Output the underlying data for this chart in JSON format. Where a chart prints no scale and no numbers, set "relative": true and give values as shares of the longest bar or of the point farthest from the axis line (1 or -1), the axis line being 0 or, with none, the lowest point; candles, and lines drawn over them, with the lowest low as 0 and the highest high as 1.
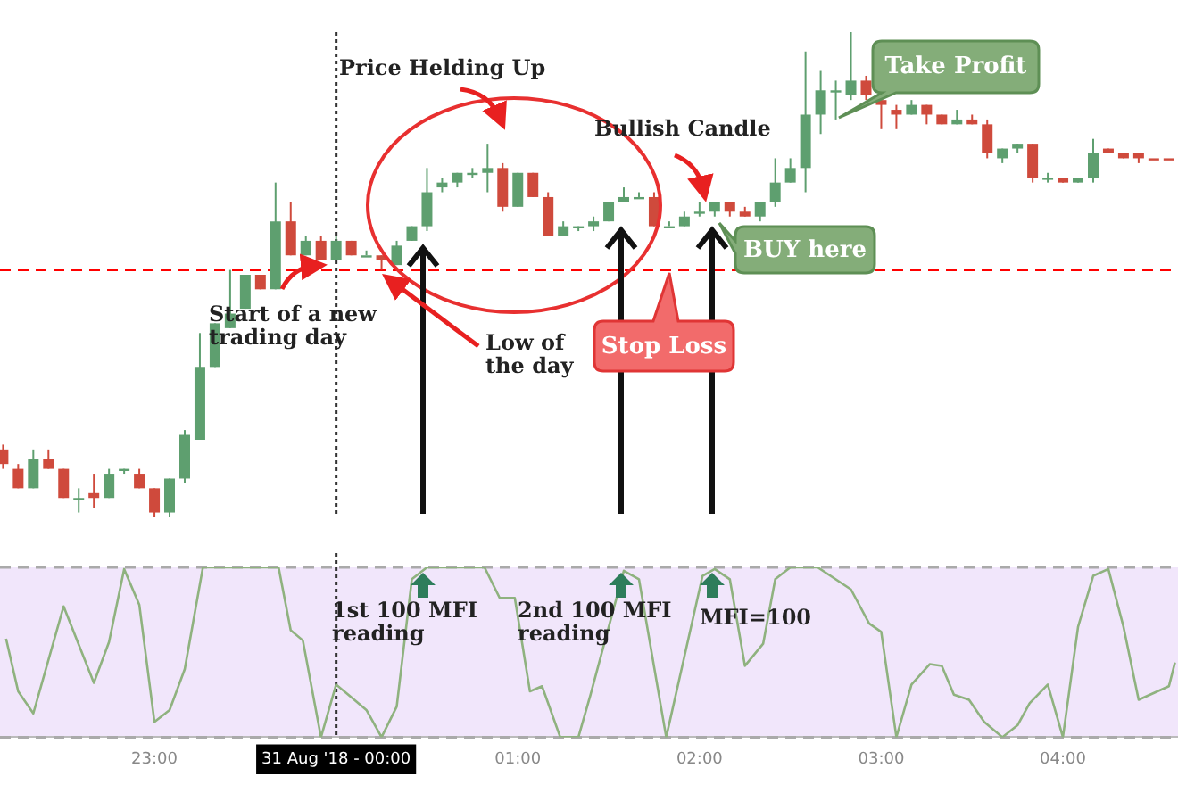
{
  "chart_data": [
    {
      "type": "candlestick",
      "relative": true,
      "x": [
        "2018-08-30T22:10",
        "2018-08-30T22:15",
        "2018-08-30T22:20",
        "2018-08-30T22:25",
        "2018-08-30T22:30",
        "2018-08-30T22:35",
        "2018-08-30T22:40",
        "2018-08-30T22:45",
        "2018-08-30T22:50",
        "2018-08-30T22:55",
        "2018-08-30T23:00",
        "2018-08-30T23:05",
        "2018-08-30T23:10",
        "2018-08-30T23:15",
        "2018-08-30T23:20",
        "2018-08-30T23:25",
        "2018-08-30T23:30",
        "2018-08-30T23:35",
        "2018-08-30T23:40",
        "2018-08-30T23:45",
        "2018-08-30T23:50",
        "2018-08-30T23:55",
        "2018-08-31T00:00",
        "2018-08-31T00:05",
        "2018-08-31T00:10",
        "2018-08-31T00:15",
        "2018-08-31T00:20",
        "2018-08-31T00:25",
        "2018-08-31T00:30",
        "2018-08-31T00:35",
        "2018-08-31T00:40",
        "2018-08-31T00:45",
        "2018-08-31T00:50",
        "2018-08-31T00:55",
        "2018-08-31T01:00",
        "2018-08-31T01:05",
        "2018-08-31T01:10",
        "2018-08-31T01:15",
        "2018-08-31T01:20",
        "2018-08-31T01:25",
        "2018-08-31T01:30",
        "2018-08-31T01:35",
        "2018-08-31T01:40",
        "2018-08-31T01:45",
        "2018-08-31T01:50",
        "2018-08-31T01:55",
        "2018-08-31T02:00",
        "2018-08-31T02:05",
        "2018-08-31T02:10",
        "2018-08-31T02:15",
        "2018-08-31T02:20",
        "2018-08-31T02:25",
        "2018-08-31T02:30",
        "2018-08-31T02:35",
        "2018-08-31T02:40",
        "2018-08-31T02:45",
        "2018-08-31T02:50",
        "2018-08-31T02:55",
        "2018-08-31T03:00",
        "2018-08-31T03:05",
        "2018-08-31T03:10",
        "2018-08-31T03:15",
        "2018-08-31T03:20",
        "2018-08-31T03:25",
        "2018-08-31T03:30",
        "2018-08-31T03:35",
        "2018-08-31T03:40",
        "2018-08-31T03:45",
        "2018-08-31T03:50",
        "2018-08-31T03:55",
        "2018-08-31T04:00",
        "2018-08-31T04:05",
        "2018-08-31T04:10",
        "2018-08-31T04:15",
        "2018-08-31T04:20",
        "2018-08-31T04:25",
        "2018-08-31T04:30",
        "2018-08-31T04:35"
      ],
      "ohlc": [
        [
          0.14,
          0.15,
          0.1,
          0.11
        ],
        [
          0.1,
          0.11,
          0.06,
          0.06
        ],
        [
          0.06,
          0.14,
          0.06,
          0.12
        ],
        [
          0.12,
          0.14,
          0.1,
          0.1
        ],
        [
          0.1,
          0.1,
          0.04,
          0.04
        ],
        [
          0.04,
          0.06,
          0.01,
          0.04
        ],
        [
          0.05,
          0.09,
          0.02,
          0.04
        ],
        [
          0.04,
          0.1,
          0.04,
          0.09
        ],
        [
          0.1,
          0.1,
          0.09,
          0.1
        ],
        [
          0.09,
          0.1,
          0.06,
          0.06
        ],
        [
          0.06,
          0.06,
          0,
          0.01
        ],
        [
          0.01,
          0.08,
          0,
          0.08
        ],
        [
          0.08,
          0.18,
          0.07,
          0.17
        ],
        [
          0.16,
          0.38,
          0.16,
          0.31
        ],
        [
          0.31,
          0.4,
          0.31,
          0.4
        ],
        [
          0.39,
          0.51,
          0.39,
          0.42
        ],
        [
          0.43,
          0.5,
          0.43,
          0.5
        ],
        [
          0.5,
          0.5,
          0.47,
          0.47
        ],
        [
          0.47,
          0.69,
          0.47,
          0.61
        ],
        [
          0.61,
          0.65,
          0.54,
          0.54
        ],
        [
          0.54,
          0.58,
          0.54,
          0.57
        ],
        [
          0.57,
          0.58,
          0.53,
          0.53
        ],
        [
          0.53,
          0.58,
          0.53,
          0.57
        ],
        [
          0.57,
          0.57,
          0.54,
          0.54
        ],
        [
          0.54,
          0.55,
          0.54,
          0.54
        ],
        [
          0.54,
          0.54,
          0.51,
          0.53
        ],
        [
          0.52,
          0.57,
          0.52,
          0.56
        ],
        [
          0.57,
          0.6,
          0.57,
          0.6
        ],
        [
          0.6,
          0.72,
          0.59,
          0.67
        ],
        [
          0.68,
          0.7,
          0.67,
          0.69
        ],
        [
          0.69,
          0.71,
          0.68,
          0.71
        ],
        [
          0.71,
          0.72,
          0.7,
          0.71
        ],
        [
          0.71,
          0.77,
          0.67,
          0.72
        ],
        [
          0.72,
          0.73,
          0.63,
          0.64
        ],
        [
          0.64,
          0.71,
          0.64,
          0.71
        ],
        [
          0.71,
          0.71,
          0.66,
          0.66
        ],
        [
          0.66,
          0.67,
          0.58,
          0.58
        ],
        [
          0.58,
          0.61,
          0.58,
          0.6
        ],
        [
          0.6,
          0.6,
          0.59,
          0.6
        ],
        [
          0.6,
          0.62,
          0.59,
          0.61
        ],
        [
          0.61,
          0.65,
          0.61,
          0.65
        ],
        [
          0.65,
          0.68,
          0.65,
          0.66
        ],
        [
          0.66,
          0.67,
          0.66,
          0.66
        ],
        [
          0.66,
          0.67,
          0.6,
          0.6
        ],
        [
          0.6,
          0.61,
          0.6,
          0.6
        ],
        [
          0.6,
          0.63,
          0.6,
          0.62
        ],
        [
          0.63,
          0.65,
          0.62,
          0.63
        ],
        [
          0.63,
          0.65,
          0.62,
          0.65
        ],
        [
          0.65,
          0.65,
          0.62,
          0.63
        ],
        [
          0.63,
          0.64,
          0.62,
          0.62
        ],
        [
          0.62,
          0.65,
          0.61,
          0.65
        ],
        [
          0.65,
          0.74,
          0.64,
          0.69
        ],
        [
          0.69,
          0.74,
          0.69,
          0.72
        ],
        [
          0.72,
          0.96,
          0.67,
          0.83
        ],
        [
          0.83,
          0.92,
          0.79,
          0.88
        ],
        [
          0.88,
          0.9,
          0.82,
          0.88
        ],
        [
          0.87,
          1,
          0.86,
          0.9
        ],
        [
          0.9,
          0.91,
          0.86,
          0.87
        ],
        [
          0.86,
          0.86,
          0.8,
          0.85
        ],
        [
          0.84,
          0.85,
          0.8,
          0.83
        ],
        [
          0.83,
          0.86,
          0.83,
          0.85
        ],
        [
          0.85,
          0.85,
          0.81,
          0.83
        ],
        [
          0.83,
          0.83,
          0.81,
          0.81
        ],
        [
          0.81,
          0.84,
          0.81,
          0.82
        ],
        [
          0.82,
          0.83,
          0.81,
          0.81
        ],
        [
          0.81,
          0.82,
          0.74,
          0.75
        ],
        [
          0.74,
          0.76,
          0.73,
          0.76
        ],
        [
          0.76,
          0.77,
          0.75,
          0.77
        ],
        [
          0.77,
          0.77,
          0.69,
          0.7
        ],
        [
          0.7,
          0.71,
          0.69,
          0.7
        ],
        [
          0.7,
          0.7,
          0.69,
          0.69
        ],
        [
          0.69,
          0.7,
          0.69,
          0.7
        ],
        [
          0.7,
          0.78,
          0.69,
          0.75
        ],
        [
          0.76,
          0.76,
          0.75,
          0.75
        ],
        [
          0.75,
          0.75,
          0.74,
          0.74
        ],
        [
          0.75,
          0.75,
          0.73,
          0.74
        ],
        [
          0.74,
          0.74,
          0.74,
          0.74
        ],
        [
          0.74,
          0.74,
          0.74,
          0.74
        ]
      ],
      "colors": [
        "#cf4a3c",
        "#cf4a3c",
        "#5e9f6f",
        "#cf4a3c",
        "#cf4a3c",
        "#5e9f6f",
        "#cf4a3c",
        "#5e9f6f",
        "#5e9f6f",
        "#cf4a3c",
        "#cf4a3c",
        "#5e9f6f",
        "#5e9f6f",
        "#5e9f6f",
        "#5e9f6f",
        "#5e9f6f",
        "#5e9f6f",
        "#cf4a3c",
        "#5e9f6f",
        "#cf4a3c",
        "#5e9f6f",
        "#cf4a3c",
        "#5e9f6f",
        "#cf4a3c",
        "#5e9f6f",
        "#cf4a3c",
        "#5e9f6f",
        "#5e9f6f",
        "#5e9f6f",
        "#5e9f6f",
        "#5e9f6f",
        "#5e9f6f",
        "#5e9f6f",
        "#cf4a3c",
        "#5e9f6f",
        "#cf4a3c",
        "#cf4a3c",
        "#5e9f6f",
        "#5e9f6f",
        "#5e9f6f",
        "#5e9f6f",
        "#5e9f6f",
        "#5e9f6f",
        "#cf4a3c",
        "#5e9f6f",
        "#5e9f6f",
        "#5e9f6f",
        "#5e9f6f",
        "#cf4a3c",
        "#cf4a3c",
        "#5e9f6f",
        "#5e9f6f",
        "#5e9f6f",
        "#5e9f6f",
        "#5e9f6f",
        "#5e9f6f",
        "#5e9f6f",
        "#cf4a3c",
        "#cf4a3c",
        "#cf4a3c",
        "#5e9f6f",
        "#cf4a3c",
        "#cf4a3c",
        "#5e9f6f",
        "#cf4a3c",
        "#cf4a3c",
        "#5e9f6f",
        "#5e9f6f",
        "#cf4a3c",
        "#5e9f6f",
        "#cf4a3c",
        "#5e9f6f",
        "#5e9f6f",
        "#cf4a3c",
        "#cf4a3c",
        "#cf4a3c",
        "#cf4a3c",
        "#cf4a3c"
      ],
      "xlim": [
        "2018-08-30T22:09",
        "2018-08-31T04:38"
      ],
      "tick_labels": false,
      "ref_lines": [
        {
          "axis": "x",
          "value": "2018-08-31T00:00",
          "color": "#333333",
          "line_style": "dotted"
        },
        {
          "axis": "y",
          "value": 0.51,
          "color": "#ff0000",
          "line_style": "dashed"
        }
      ],
      "annotations": [
        "Price Helding Up",
        "Start of a new trading day",
        "Low of the day",
        "Bullish Candle",
        "Stop Loss",
        "BUY here",
        "Take Profit"
      ]
    },
    {
      "type": "line",
      "relative": true,
      "series": [
        {
          "color": "#8fb27f",
          "x": [
            "2018-08-30T22:11",
            "2018-08-30T22:15",
            "2018-08-30T22:20",
            "2018-08-30T22:30",
            "2018-08-30T22:40",
            "2018-08-30T22:45",
            "2018-08-30T22:50",
            "2018-08-30T22:55",
            "2018-08-30T23:00",
            "2018-08-30T23:05",
            "2018-08-30T23:10",
            "2018-08-30T23:16",
            "2018-08-30T23:41",
            "2018-08-30T23:45",
            "2018-08-30T23:49",
            "2018-08-30T23:55",
            "2018-08-31T00:00",
            "2018-08-31T00:04",
            "2018-08-31T00:10",
            "2018-08-31T00:15",
            "2018-08-31T00:20",
            "2018-08-31T00:25",
            "2018-08-31T00:30",
            "2018-08-31T00:49",
            "2018-08-31T00:54",
            "2018-08-31T00:59",
            "2018-08-31T01:04",
            "2018-08-31T01:08",
            "2018-08-31T01:14",
            "2018-08-31T01:20",
            "2018-08-31T01:24",
            "2018-08-31T01:35",
            "2018-08-31T01:40",
            "2018-08-31T01:49",
            "2018-08-31T02:01",
            "2018-08-31T02:05",
            "2018-08-31T02:10",
            "2018-08-31T02:15",
            "2018-08-31T02:21",
            "2018-08-31T02:25",
            "2018-08-31T02:30",
            "2018-08-31T02:39",
            "2018-08-31T02:50",
            "2018-08-31T02:56",
            "2018-08-31T03:00",
            "2018-08-31T03:05",
            "2018-08-31T03:10",
            "2018-08-31T03:16",
            "2018-08-31T03:20",
            "2018-08-31T03:24",
            "2018-08-31T03:29",
            "2018-08-31T03:34",
            "2018-08-31T03:40",
            "2018-08-31T03:45",
            "2018-08-31T03:49",
            "2018-08-31T03:55",
            "2018-08-31T04:00",
            "2018-08-31T04:05",
            "2018-08-31T04:10",
            "2018-08-31T04:15",
            "2018-08-31T04:20",
            "2018-08-31T04:25",
            "2018-08-31T04:35",
            "2018-08-31T04:37"
          ],
          "values": [
            0.58,
            0.27,
            0.14,
            0.77,
            0.32,
            0.56,
            0.99,
            0.78,
            0.09,
            0.16,
            0.4,
            1,
            1,
            0.63,
            0.57,
            0,
            0.31,
            0.25,
            0.16,
            0,
            0.18,
            0.93,
            1,
            1,
            0.82,
            0.82,
            0.27,
            0.3,
            0,
            0,
            0.25,
            0.98,
            0.93,
            0,
            0.95,
            0.99,
            0.93,
            0.42,
            0.55,
            0.93,
            1,
            1,
            0.87,
            0.67,
            0.62,
            0,
            0.31,
            0.43,
            0.42,
            0.25,
            0.22,
            0.09,
            0,
            0.07,
            0.2,
            0.31,
            0,
            0.65,
            0.95,
            0.99,
            0.65,
            0.22,
            0.3,
            0.44
          ]
        }
      ],
      "xlim": [
        "2018-08-30T22:09",
        "2018-08-31T04:38"
      ],
      "xticks": [
        {
          "value": "2018-08-30T23:00",
          "label": "23:00"
        },
        {
          "value": "2018-08-31T00:00",
          "label": "31 Aug '18 - 00:00"
        },
        {
          "value": "2018-08-31T01:00",
          "label": "01:00"
        },
        {
          "value": "2018-08-31T02:00",
          "label": "02:00"
        },
        {
          "value": "2018-08-31T03:00",
          "label": "03:00"
        },
        {
          "value": "2018-08-31T04:00",
          "label": "04:00"
        }
      ],
      "tick_labels": "x",
      "marker": "none",
      "line_style": "solid",
      "ref_lines": [
        {
          "axis": "x",
          "value": "2018-08-31T00:00",
          "color": "#333333",
          "line_style": "dotted"
        },
        {
          "axis": "y",
          "value": 1,
          "color": "#aaaaaa",
          "line_style": "dashed"
        },
        {
          "axis": "y",
          "value": 0,
          "color": "#aaaaaa",
          "line_style": "dashed"
        }
      ],
      "annotations": [
        "1st 100 MFI reading",
        "2nd 100 MFI reading",
        "MFI=100"
      ]
    }
  ]
}
